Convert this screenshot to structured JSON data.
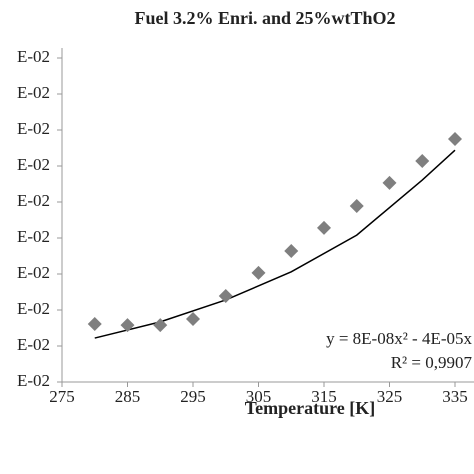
{
  "chart_data": {
    "type": "scatter",
    "title": "Fuel 3.2% Enri. and 25%wtThO2",
    "x_label": "Temperature [K]",
    "annotations": [
      "y = 8E-08x² - 4E-05x",
      "R² = 0,9907"
    ],
    "x": [
      280,
      285,
      290,
      295,
      300,
      305,
      310,
      315,
      320,
      325,
      330,
      335
    ],
    "values": [
      1.61,
      1.58,
      1.58,
      1.75,
      2.39,
      3.03,
      3.64,
      4.28,
      4.89,
      5.53,
      6.14,
      6.75
    ],
    "color": "#7f7f7f",
    "trendline": {
      "x": [
        280,
        290,
        300,
        310,
        320,
        330,
        335
      ],
      "values": [
        1.22,
        1.67,
        2.28,
        3.06,
        4.08,
        5.61,
        6.44
      ],
      "color": "#000000"
    },
    "xlim": [
      275,
      335
    ],
    "xticks": [
      275,
      285,
      295,
      305,
      315,
      325,
      335
    ],
    "ylim": [
      0,
      9
    ],
    "yticks": [
      {
        "value": 0,
        "label": "E-02"
      },
      {
        "value": 1,
        "label": "E-02"
      },
      {
        "value": 2,
        "label": "E-02"
      },
      {
        "value": 3,
        "label": "E-02"
      },
      {
        "value": 4,
        "label": "E-02"
      },
      {
        "value": 5,
        "label": "E-02"
      },
      {
        "value": 6,
        "label": "E-02"
      },
      {
        "value": 7,
        "label": "E-02"
      },
      {
        "value": 8,
        "label": "E-02"
      },
      {
        "value": 9,
        "label": "E-02"
      }
    ]
  }
}
